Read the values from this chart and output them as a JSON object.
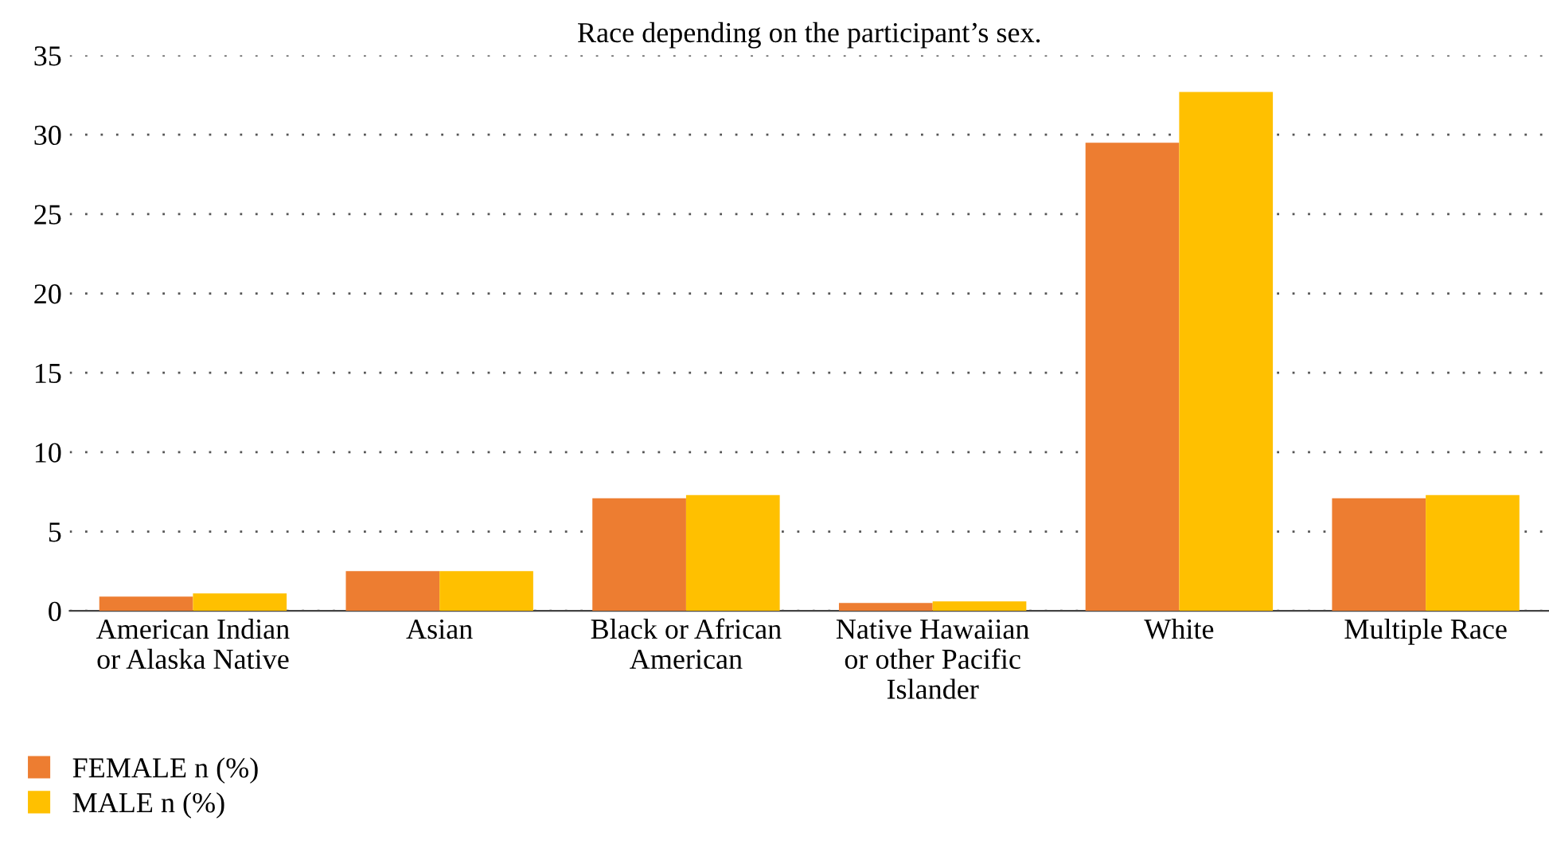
{
  "chart_data": {
    "type": "bar",
    "title": "Race depending on the participant’s sex.",
    "categories": [
      "American Indian\nor Alaska Native",
      "Asian",
      "Black or African\nAmerican",
      "Native Hawaiian\nor other Pacific\nIslander",
      "White",
      "Multiple Race"
    ],
    "series": [
      {
        "name": "FEMALE n (%)",
        "color": "#ed7d31",
        "values": [
          0.9,
          2.5,
          7.1,
          0.5,
          29.5,
          7.1
        ]
      },
      {
        "name": "MALE n (%)",
        "color": "#ffc000",
        "values": [
          1.1,
          2.5,
          7.3,
          0.6,
          32.7,
          7.3
        ]
      }
    ],
    "ylim": [
      0,
      35
    ],
    "yticks": [
      0,
      5,
      10,
      15,
      20,
      25,
      30,
      35
    ],
    "grid": "y",
    "legend": "bottom left"
  }
}
